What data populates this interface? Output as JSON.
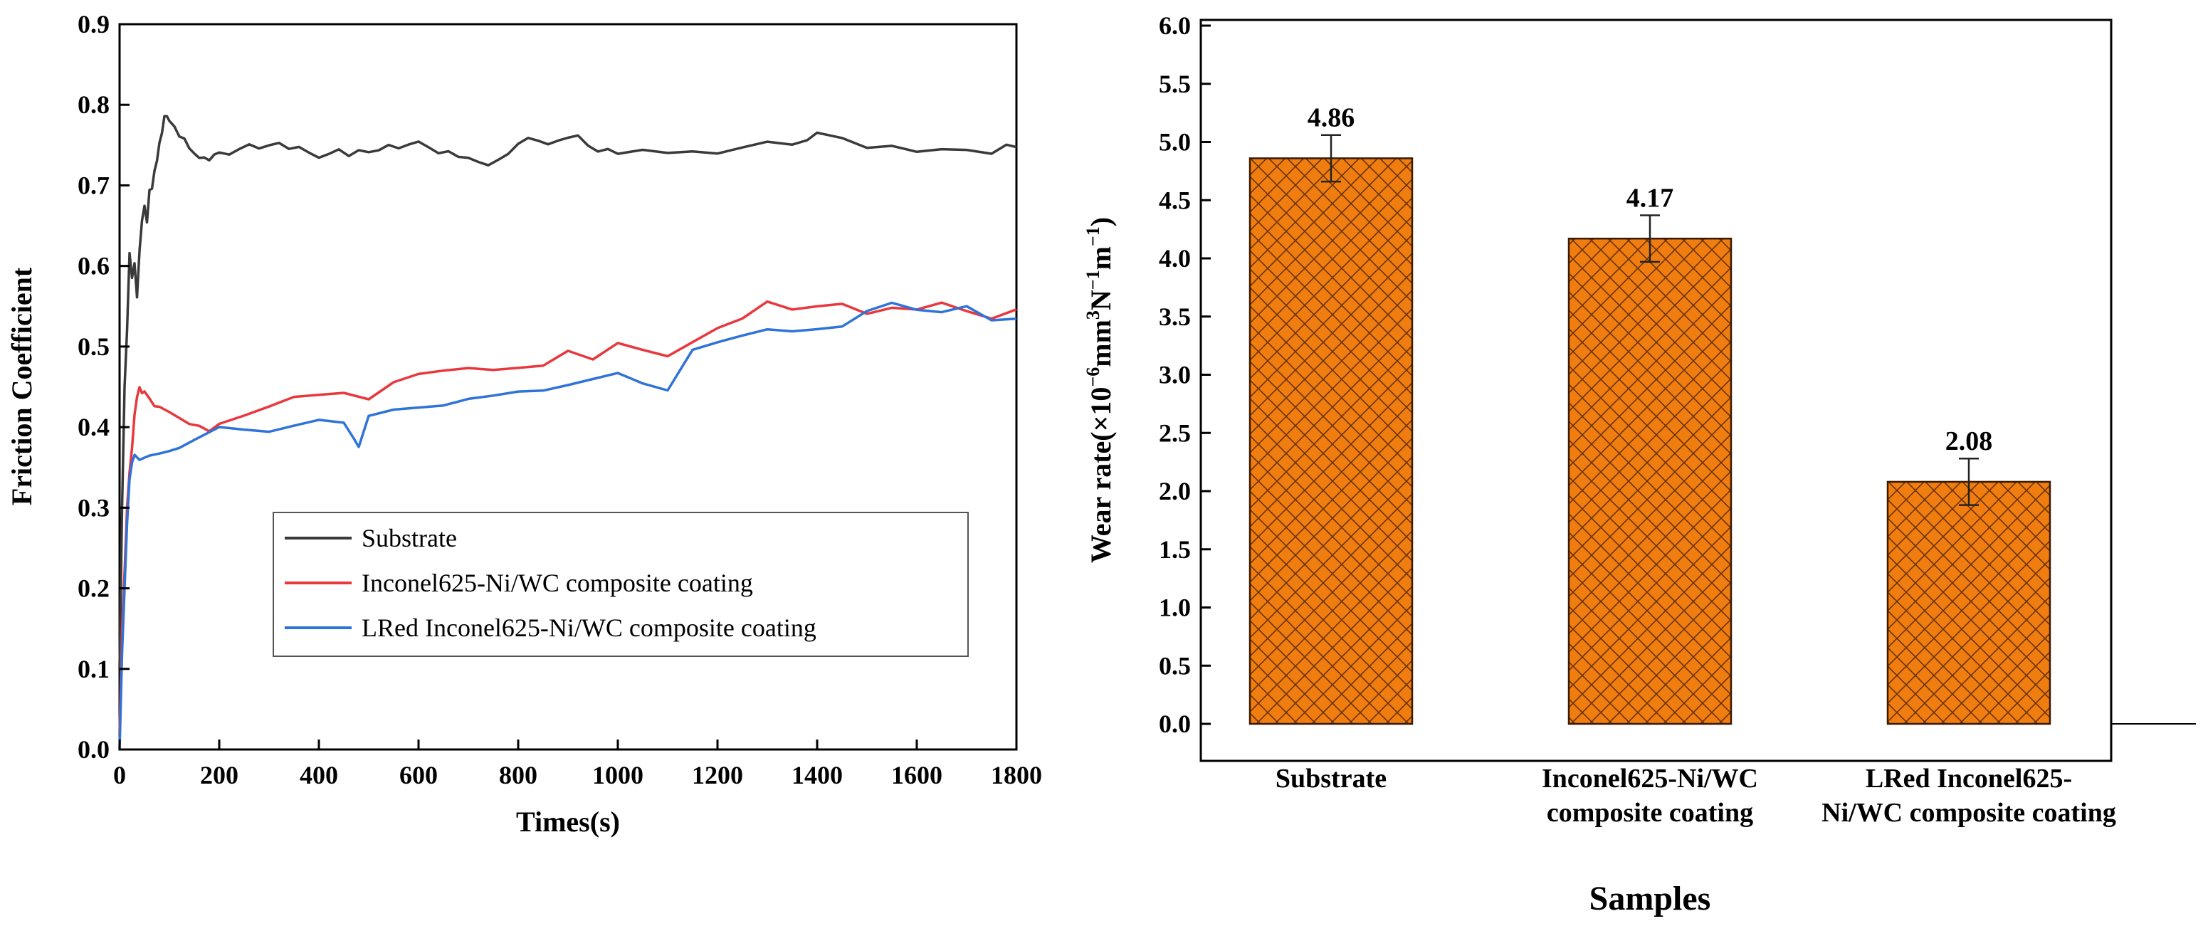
{
  "chart_data": [
    {
      "type": "line",
      "title": "",
      "xlabel": "Times(s)",
      "ylabel": "Friction Coefficient",
      "xlim": [
        0,
        1800
      ],
      "ylim": [
        0,
        0.9
      ],
      "xticks": [
        0,
        200,
        400,
        600,
        800,
        1000,
        1200,
        1400,
        1600,
        1800
      ],
      "yticks": [
        0.0,
        0.1,
        0.2,
        0.3,
        0.4,
        0.5,
        0.6,
        0.7,
        0.8,
        0.9
      ],
      "xtick_labels": [
        "0",
        "200",
        "400",
        "600",
        "800",
        "1000",
        "1200",
        "1400",
        "1600",
        "1800"
      ],
      "ytick_labels": [
        "0.0",
        "0.1",
        "0.2",
        "0.3",
        "0.4",
        "0.5",
        "0.6",
        "0.7",
        "0.8",
        "0.9"
      ],
      "legend_position": "center-right",
      "series": [
        {
          "name": "Substrate",
          "color": "#3a3a3a",
          "x": [
            0,
            5,
            10,
            15,
            20,
            25,
            30,
            35,
            40,
            45,
            50,
            55,
            60,
            65,
            70,
            75,
            80,
            85,
            90,
            95,
            100,
            110,
            120,
            130,
            140,
            150,
            160,
            170,
            180,
            190,
            200,
            220,
            240,
            260,
            280,
            300,
            320,
            340,
            360,
            380,
            400,
            420,
            440,
            460,
            480,
            500,
            520,
            540,
            560,
            580,
            600,
            620,
            640,
            660,
            680,
            700,
            720,
            740,
            760,
            780,
            800,
            820,
            840,
            860,
            880,
            900,
            920,
            940,
            960,
            980,
            1000,
            1050,
            1100,
            1150,
            1200,
            1250,
            1300,
            1350,
            1380,
            1400,
            1450,
            1500,
            1550,
            1600,
            1650,
            1700,
            1750,
            1780,
            1800
          ],
          "y": [
            0.1,
            0.3,
            0.45,
            0.52,
            0.61,
            0.58,
            0.6,
            0.56,
            0.62,
            0.66,
            0.68,
            0.66,
            0.7,
            0.7,
            0.72,
            0.73,
            0.75,
            0.76,
            0.78,
            0.78,
            0.775,
            0.77,
            0.76,
            0.76,
            0.75,
            0.745,
            0.74,
            0.74,
            0.735,
            0.74,
            0.74,
            0.735,
            0.74,
            0.745,
            0.74,
            0.745,
            0.75,
            0.745,
            0.75,
            0.745,
            0.74,
            0.745,
            0.75,
            0.74,
            0.745,
            0.74,
            0.74,
            0.745,
            0.74,
            0.745,
            0.75,
            0.745,
            0.74,
            0.745,
            0.74,
            0.74,
            0.735,
            0.73,
            0.735,
            0.74,
            0.75,
            0.755,
            0.75,
            0.745,
            0.75,
            0.755,
            0.76,
            0.75,
            0.745,
            0.75,
            0.745,
            0.75,
            0.745,
            0.745,
            0.74,
            0.745,
            0.75,
            0.745,
            0.75,
            0.76,
            0.755,
            0.745,
            0.75,
            0.745,
            0.75,
            0.75,
            0.745,
            0.755,
            0.75
          ]
        },
        {
          "name": "Inconel625-Ni/WC composite coating",
          "color": "#e8383d",
          "x": [
            0,
            5,
            10,
            15,
            20,
            25,
            30,
            35,
            40,
            45,
            50,
            60,
            70,
            80,
            100,
            120,
            140,
            160,
            180,
            200,
            250,
            300,
            350,
            400,
            450,
            500,
            550,
            600,
            650,
            700,
            750,
            800,
            850,
            900,
            950,
            1000,
            1050,
            1100,
            1150,
            1200,
            1250,
            1300,
            1350,
            1400,
            1450,
            1500,
            1550,
            1600,
            1650,
            1700,
            1750,
            1800
          ],
          "y": [
            0.02,
            0.15,
            0.22,
            0.3,
            0.35,
            0.38,
            0.42,
            0.44,
            0.45,
            0.44,
            0.44,
            0.43,
            0.42,
            0.42,
            0.415,
            0.41,
            0.405,
            0.405,
            0.4,
            0.41,
            0.42,
            0.43,
            0.44,
            0.44,
            0.44,
            0.43,
            0.45,
            0.46,
            0.465,
            0.47,
            0.47,
            0.475,
            0.48,
            0.5,
            0.49,
            0.51,
            0.5,
            0.49,
            0.505,
            0.52,
            0.53,
            0.55,
            0.54,
            0.545,
            0.55,
            0.54,
            0.55,
            0.55,
            0.56,
            0.55,
            0.54,
            0.55
          ]
        },
        {
          "name": "LRed Inconel625-Ni/WC composite coating",
          "color": "#2f73d9",
          "x": [
            0,
            5,
            10,
            15,
            20,
            25,
            30,
            40,
            50,
            60,
            80,
            100,
            120,
            150,
            200,
            250,
            300,
            350,
            400,
            450,
            470,
            480,
            500,
            550,
            600,
            650,
            700,
            750,
            800,
            850,
            900,
            950,
            1000,
            1050,
            1100,
            1150,
            1200,
            1250,
            1300,
            1350,
            1400,
            1450,
            1500,
            1550,
            1600,
            1650,
            1700,
            1750,
            1800
          ],
          "y": [
            0.0,
            0.12,
            0.2,
            0.28,
            0.33,
            0.35,
            0.36,
            0.355,
            0.36,
            0.365,
            0.37,
            0.375,
            0.38,
            0.39,
            0.405,
            0.4,
            0.395,
            0.4,
            0.405,
            0.4,
            0.38,
            0.37,
            0.41,
            0.42,
            0.425,
            0.43,
            0.44,
            0.445,
            0.45,
            0.45,
            0.455,
            0.46,
            0.465,
            0.45,
            0.44,
            0.49,
            0.5,
            0.51,
            0.52,
            0.52,
            0.525,
            0.53,
            0.55,
            0.56,
            0.55,
            0.545,
            0.55,
            0.53,
            0.53
          ]
        }
      ]
    },
    {
      "type": "bar",
      "title": "",
      "xlabel": "Samples",
      "ylabel_main": "Wear rate(×10",
      "ylabel_exp1": "−6",
      "ylabel_mid1": "mm",
      "ylabel_exp2": "3",
      "ylabel_mid2": "N",
      "ylabel_exp3": "−1",
      "ylabel_mid3": "m",
      "ylabel_exp4": "−1",
      "ylabel_end": ")",
      "ylim": [
        0,
        6.0
      ],
      "yticks": [
        0.0,
        0.5,
        1.0,
        1.5,
        2.0,
        2.5,
        3.0,
        3.5,
        4.0,
        4.5,
        5.0,
        5.5,
        6.0
      ],
      "ytick_labels": [
        "0.0",
        "0.5",
        "1.0",
        "1.5",
        "2.0",
        "2.5",
        "3.0",
        "3.5",
        "4.0",
        "4.5",
        "5.0",
        "5.5",
        "6.0"
      ],
      "categories": [
        [
          "Substrate"
        ],
        [
          "Inconel625-Ni/WC",
          "composite coating"
        ],
        [
          "LRed Inconel625-",
          "Ni/WC composite coating"
        ]
      ],
      "values": [
        4.86,
        4.17,
        2.08
      ],
      "value_labels": [
        "4.86",
        "4.17",
        "2.08"
      ],
      "errors": [
        0.2,
        0.2,
        0.2
      ],
      "bar_color": "#f07d10",
      "hatch": "crosshatch"
    }
  ]
}
